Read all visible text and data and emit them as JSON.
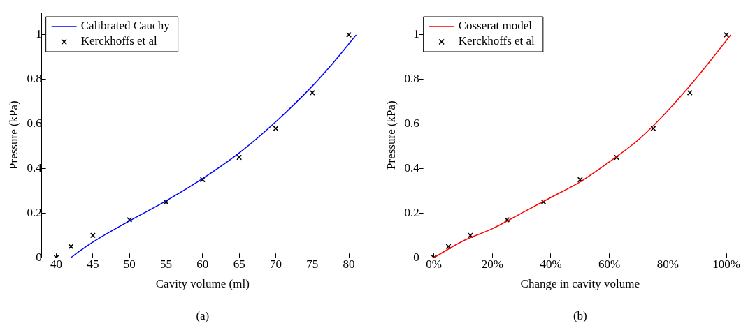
{
  "chart_data": [
    {
      "type": "line",
      "xlabel": "Cavity volume (ml)",
      "ylabel": "Pressure (kPa)",
      "xlim": [
        38,
        82
      ],
      "xticks": [
        40,
        45,
        50,
        55,
        60,
        65,
        70,
        75,
        80
      ],
      "ylim": [
        0,
        1.1
      ],
      "yticks": [
        0,
        0.2,
        0.4,
        0.6,
        0.8,
        1
      ],
      "grid": false,
      "legend": "top left",
      "annotations": [
        "(a)"
      ],
      "series": [
        {
          "name": "Calibrated Cauchy",
          "type": "line",
          "color": "#0000ff",
          "marker": "none",
          "x": [
            42,
            43,
            45,
            50,
            55,
            60,
            65,
            70,
            75,
            78,
            81
          ],
          "values": [
            0,
            0.025,
            0.07,
            0.165,
            0.255,
            0.355,
            0.47,
            0.61,
            0.77,
            0.88,
            1.0
          ]
        },
        {
          "name": "Kerckhoffs et al",
          "type": "scatter",
          "color": "#000000",
          "marker": "cross",
          "x": [
            40,
            42,
            45,
            50,
            55,
            60,
            65,
            70,
            75,
            80
          ],
          "values": [
            0,
            0.05,
            0.1,
            0.17,
            0.25,
            0.35,
            0.45,
            0.58,
            0.74,
            1.0
          ]
        }
      ]
    },
    {
      "type": "line",
      "xlabel": "Change in cavity volume",
      "ylabel": "Pressure (kPa)",
      "xlim": [
        -5,
        105
      ],
      "xticks": [
        {
          "value": 0,
          "label": "0%"
        },
        {
          "value": 20,
          "label": "20%"
        },
        {
          "value": 40,
          "label": "40%"
        },
        {
          "value": 60,
          "label": "60%"
        },
        {
          "value": 80,
          "label": "80%"
        },
        {
          "value": 100,
          "label": "100%"
        }
      ],
      "ylim": [
        0,
        1.1
      ],
      "yticks": [
        0,
        0.2,
        0.4,
        0.6,
        0.8,
        1
      ],
      "grid": false,
      "legend": "top left",
      "annotations": [
        "(b)"
      ],
      "series": [
        {
          "name": "Cosserat model",
          "type": "line",
          "color": "#ff0000",
          "marker": "none",
          "x": [
            0,
            10,
            20,
            30,
            40,
            50,
            60,
            70,
            80,
            90,
            101.5
          ],
          "values": [
            0,
            0.075,
            0.13,
            0.2,
            0.27,
            0.34,
            0.43,
            0.53,
            0.66,
            0.81,
            1.0
          ]
        },
        {
          "name": "Kerckhoffs et al",
          "type": "scatter",
          "color": "#000000",
          "marker": "cross",
          "x": [
            0,
            5,
            12.5,
            25,
            37.5,
            50,
            62.5,
            75,
            87.5,
            100
          ],
          "values": [
            0,
            0.05,
            0.1,
            0.17,
            0.25,
            0.35,
            0.45,
            0.58,
            0.74,
            1.0
          ]
        }
      ]
    }
  ]
}
